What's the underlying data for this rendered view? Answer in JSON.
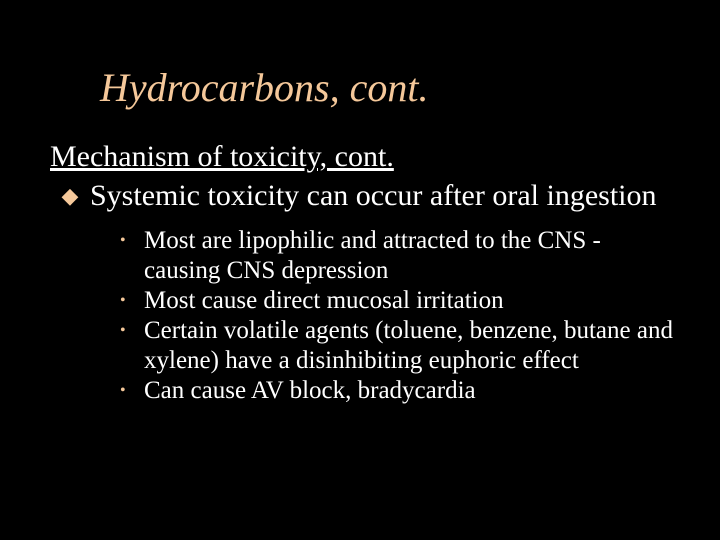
{
  "colors": {
    "background": "#000000",
    "titleColor": "#f5c89a",
    "subtitleColor": "#ffffff",
    "level1BulletColor": "#f5c89a",
    "level1TextColor": "#ffffff",
    "level2BulletColor": "#f5c89a",
    "level2TextColor": "#ffffff"
  },
  "typography": {
    "fontFamily": "Times New Roman",
    "titleFontSize": 40,
    "titleItalic": true,
    "subtitleFontSize": 30,
    "subtitleUnderline": true,
    "level1FontSize": 30,
    "level2FontSize": 25
  },
  "title": "Hydrocarbons, cont.",
  "subtitle": "Mechanism of toxicity, cont.",
  "level1Bullet": "◆",
  "level1Text": "Systemic toxicity can occur after oral ingestion",
  "level2Bullet": "•",
  "level2": [
    "Most are lipophilic and attracted to the CNS - causing CNS depression",
    "Most cause direct mucosal irritation",
    "Certain volatile agents (toluene, benzene, butane and xylene) have a disinhibiting euphoric effect",
    "Can cause AV block, bradycardia"
  ]
}
